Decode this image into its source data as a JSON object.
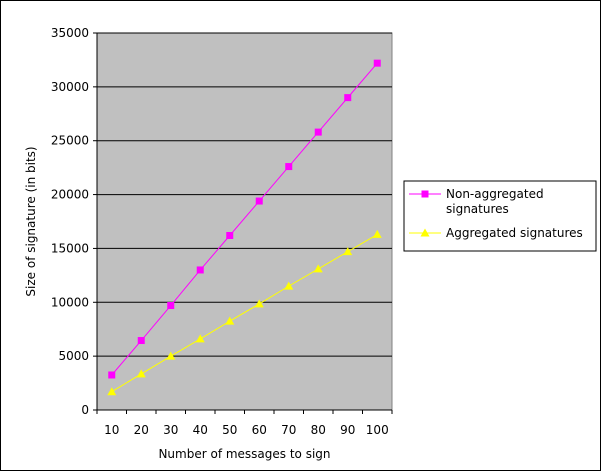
{
  "chart_data": {
    "type": "line",
    "title": "",
    "xlabel": "Number of messages to sign",
    "ylabel": "Size of signature (in bits)",
    "categories": [
      "10",
      "20",
      "30",
      "40",
      "50",
      "60",
      "70",
      "80",
      "90",
      "100"
    ],
    "ylim": [
      0,
      35000
    ],
    "yticks": [
      0,
      5000,
      10000,
      15000,
      20000,
      25000,
      30000,
      35000
    ],
    "grid": true,
    "legend_position": "right",
    "plot_background": "#c0c0c0",
    "series": [
      {
        "name": "Non-aggregated signatures",
        "marker": "square",
        "color": "#ff00ff",
        "values": [
          3250,
          6450,
          9700,
          13000,
          16200,
          19400,
          22600,
          25800,
          29000,
          32200
        ]
      },
      {
        "name": "Aggregated signatures",
        "marker": "triangle",
        "color": "#ffff00",
        "values": [
          1700,
          3350,
          5000,
          6600,
          8250,
          9850,
          11500,
          13100,
          14700,
          16300
        ]
      }
    ]
  }
}
